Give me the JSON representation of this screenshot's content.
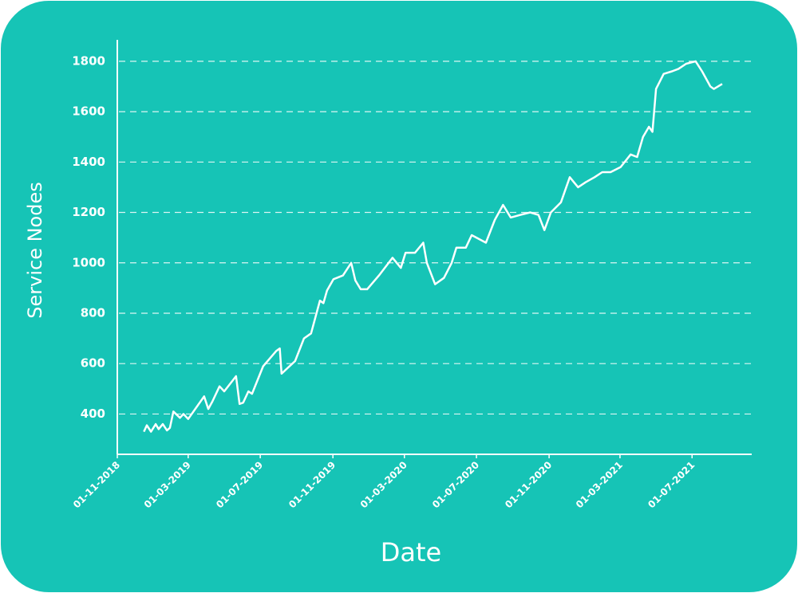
{
  "chart_data": {
    "type": "line",
    "x_label": "Date",
    "y_label": "Service Nodes",
    "x": [
      "2018-12-16",
      "2018-12-21",
      "2018-12-28",
      "2019-01-05",
      "2019-01-10",
      "2019-01-17",
      "2019-01-24",
      "2019-01-29",
      "2019-02-04",
      "2019-02-15",
      "2019-02-21",
      "2019-03-01",
      "2019-03-28",
      "2019-04-04",
      "2019-04-11",
      "2019-04-23",
      "2019-05-01",
      "2019-05-21",
      "2019-05-27",
      "2019-06-02",
      "2019-06-11",
      "2019-06-17",
      "2019-07-06",
      "2019-07-28",
      "2019-08-03",
      "2019-08-06",
      "2019-08-29",
      "2019-09-13",
      "2019-09-25",
      "2019-10-10",
      "2019-10-16",
      "2019-10-22",
      "2019-11-02",
      "2019-11-18",
      "2019-12-02",
      "2019-12-09",
      "2019-12-18",
      "2019-12-29",
      "2020-01-18",
      "2020-02-10",
      "2020-02-24",
      "2020-03-03",
      "2020-03-19",
      "2020-04-02",
      "2020-04-08",
      "2020-04-22",
      "2020-05-07",
      "2020-05-20",
      "2020-05-28",
      "2020-06-13",
      "2020-06-23",
      "2020-07-17",
      "2020-08-01",
      "2020-08-15",
      "2020-08-28",
      "2020-09-13",
      "2020-09-30",
      "2020-10-14",
      "2020-10-24",
      "2020-11-04",
      "2020-11-21",
      "2020-12-06",
      "2020-12-20",
      "2021-01-02",
      "2021-01-17",
      "2021-01-30",
      "2021-02-13",
      "2021-03-02",
      "2021-03-19",
      "2021-03-30",
      "2021-04-09",
      "2021-04-19",
      "2021-04-25",
      "2021-05-01",
      "2021-05-14",
      "2021-05-28",
      "2021-06-08",
      "2021-06-21",
      "2021-07-07",
      "2021-07-18",
      "2021-08-01",
      "2021-08-07",
      "2021-08-21"
    ],
    "series": [
      {
        "name": "Service Nodes",
        "color": "#ffffff",
        "values": [
          330,
          355,
          330,
          360,
          340,
          360,
          335,
          345,
          410,
          385,
          400,
          380,
          470,
          420,
          450,
          510,
          490,
          550,
          440,
          445,
          490,
          480,
          590,
          650,
          660,
          560,
          610,
          700,
          720,
          850,
          840,
          890,
          935,
          950,
          1000,
          930,
          895,
          895,
          950,
          1020,
          980,
          1040,
          1040,
          1080,
          1000,
          915,
          940,
          1000,
          1060,
          1060,
          1110,
          1080,
          1170,
          1230,
          1180,
          1190,
          1200,
          1190,
          1130,
          1200,
          1240,
          1340,
          1300,
          1320,
          1340,
          1360,
          1360,
          1380,
          1430,
          1420,
          1500,
          1540,
          1520,
          1690,
          1750,
          1760,
          1770,
          1790,
          1800,
          1760,
          1700,
          1690,
          1710
        ]
      }
    ],
    "xlim": [
      "2018-11-01",
      "2021-10-10"
    ],
    "xticks": [
      {
        "value": "2018-11-01",
        "label": "01-11-2018"
      },
      {
        "value": "2019-03-01",
        "label": "01-03-2019"
      },
      {
        "value": "2019-07-01",
        "label": "01-07-2019"
      },
      {
        "value": "2019-11-01",
        "label": "01-11-2019"
      },
      {
        "value": "2020-03-01",
        "label": "01-03-2020"
      },
      {
        "value": "2020-07-01",
        "label": "01-07-2020"
      },
      {
        "value": "2020-11-01",
        "label": "01-11-2020"
      },
      {
        "value": "2021-03-01",
        "label": "01-03-2021"
      },
      {
        "value": "2021-07-01",
        "label": "01-07-2021"
      }
    ],
    "ylim": [
      240,
      1885
    ],
    "yticks": [
      400,
      600,
      800,
      1000,
      1200,
      1400,
      1600,
      1800
    ],
    "grid": true
  }
}
